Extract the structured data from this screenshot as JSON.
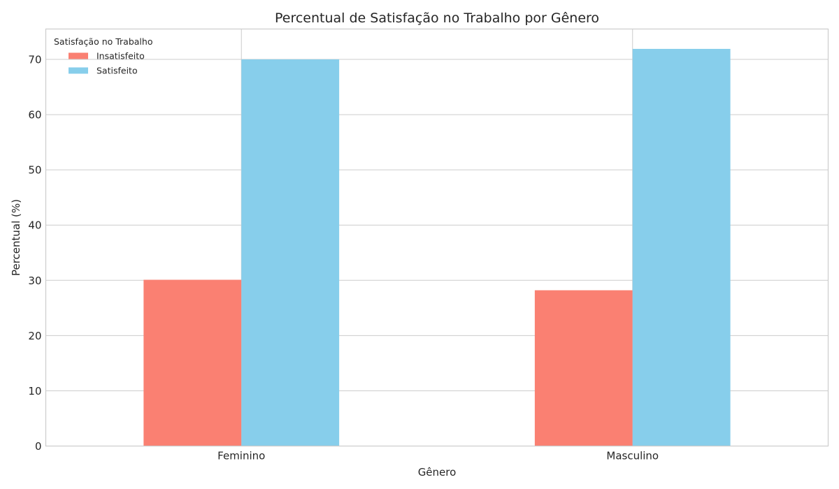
{
  "chart_data": {
    "type": "bar",
    "title": "Percentual de Satisfação no Trabalho por Gênero",
    "xlabel": "Gênero",
    "ylabel": "Percentual (%)",
    "categories": [
      "Feminino",
      "Masculino"
    ],
    "series": [
      {
        "name": "Insatisfeito",
        "color": "#fa8072",
        "values": [
          30.1,
          28.2
        ]
      },
      {
        "name": "Satisfeito",
        "color": "#87ceeb",
        "values": [
          70.0,
          71.9
        ]
      }
    ],
    "ylim": [
      0,
      75.5
    ],
    "yticks": [
      0,
      10,
      20,
      30,
      40,
      50,
      60,
      70
    ],
    "grid": true,
    "legend": {
      "title": "Satisfação no Trabalho",
      "position": "top-left"
    }
  }
}
